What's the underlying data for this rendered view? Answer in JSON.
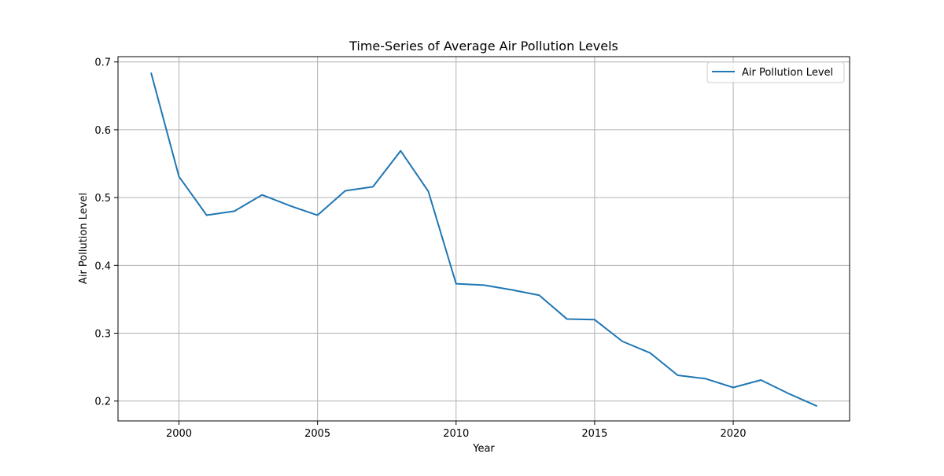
{
  "chart_data": {
    "type": "line",
    "title": "Time-Series of Average Air Pollution Levels",
    "xlabel": "Year",
    "ylabel": "Air Pollution Level",
    "xlim": [
      1997.8,
      2024.2
    ],
    "ylim": [
      0.1707,
      0.7078
    ],
    "xticks": [
      2000,
      2005,
      2010,
      2015,
      2020
    ],
    "yticks": [
      0.2,
      0.3,
      0.4,
      0.5,
      0.6,
      0.7
    ],
    "xtick_labels": [
      "2000",
      "2005",
      "2010",
      "2015",
      "2020"
    ],
    "ytick_labels": [
      "0.2",
      "0.3",
      "0.4",
      "0.5",
      "0.6",
      "0.7"
    ],
    "grid": true,
    "legend_position": "top-right",
    "series": [
      {
        "name": "Air Pollution Level",
        "color": "#1f77b4",
        "x": [
          1999,
          2000,
          2001,
          2002,
          2003,
          2004,
          2005,
          2006,
          2007,
          2008,
          2009,
          2010,
          2011,
          2012,
          2013,
          2014,
          2015,
          2016,
          2017,
          2018,
          2019,
          2020,
          2021,
          2022,
          2023
        ],
        "y": [
          0.683,
          0.531,
          0.474,
          0.48,
          0.504,
          0.488,
          0.474,
          0.51,
          0.516,
          0.569,
          0.509,
          0.373,
          0.371,
          0.364,
          0.356,
          0.321,
          0.32,
          0.288,
          0.271,
          0.238,
          0.233,
          0.22,
          0.231,
          0.211,
          0.193
        ]
      }
    ]
  }
}
